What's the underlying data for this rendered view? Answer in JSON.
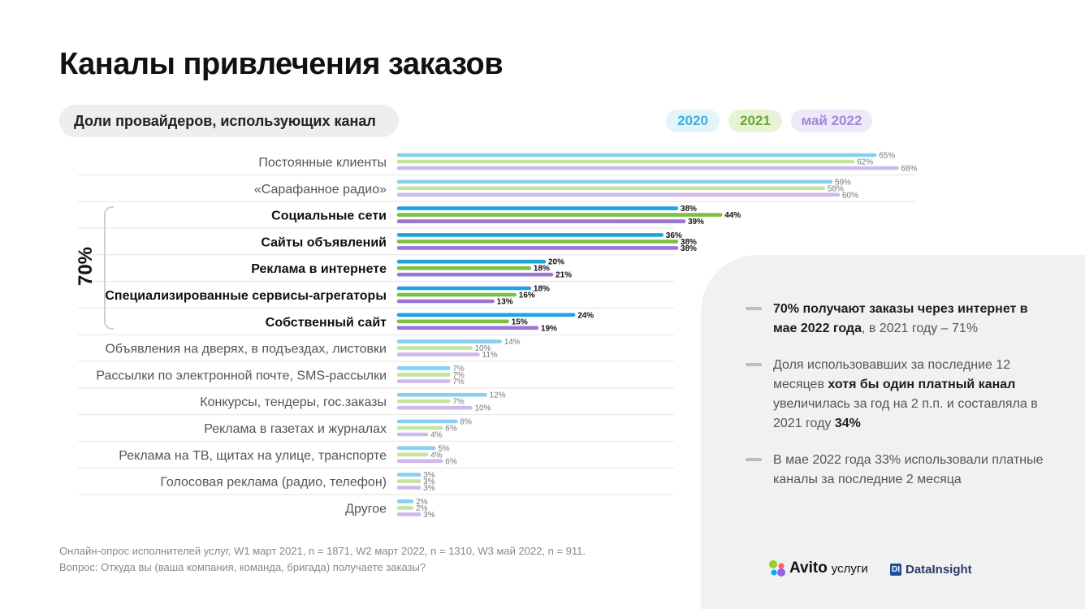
{
  "slide": {
    "title": "Каналы привлечения заказов",
    "subtitle": "Доли провайдеров, использующих канал",
    "bracket_label": "70%"
  },
  "legend": [
    {
      "label": "2020",
      "color": "#5bc3e6",
      "text_color": "#3bb0da",
      "bg": "#e4f4fb"
    },
    {
      "label": "2021",
      "color": "#a6d96a",
      "text_color": "#6da833",
      "bg": "#e6f3d6"
    },
    {
      "label": "май 2022",
      "color": "#b49ce6",
      "text_color": "#a486d8",
      "bg": "#efe8fa"
    }
  ],
  "chart_data": {
    "type": "bar",
    "orientation": "horizontal",
    "title": "Доли провайдеров, использующих канал",
    "categories": [
      "Постоянные клиенты",
      "«Сарафанное радио»",
      "Социальные сети",
      "Сайты объявлений",
      "Реклама в интернете",
      "Специализированные сервисы-агрегаторы",
      "Собственный сайт",
      "Объявления на дверях, в подъездах, листовки",
      "Рассылки по электронной почте, SMS-рассылки",
      "Конкурсы, тендеры, гос.заказы",
      "Реклама в газетах и журналах",
      "Реклама на ТВ, щитах на улице, транспорте",
      "Голосовая реклама (радио, телефон)",
      "Другое"
    ],
    "highlighted": [
      false,
      false,
      true,
      true,
      true,
      true,
      true,
      false,
      false,
      false,
      false,
      false,
      false,
      false
    ],
    "series": [
      {
        "name": "2020",
        "values": [
          65,
          59,
          38,
          36,
          20,
          18,
          24,
          14,
          7,
          12,
          8,
          5,
          3,
          2
        ]
      },
      {
        "name": "2021",
        "values": [
          62,
          58,
          44,
          38,
          18,
          16,
          15,
          10,
          7,
          7,
          6,
          4,
          3,
          2
        ]
      },
      {
        "name": "май 2022",
        "values": [
          68,
          60,
          39,
          38,
          21,
          13,
          19,
          11,
          7,
          10,
          4,
          6,
          3,
          3
        ]
      }
    ],
    "value_suffix": "%",
    "colors": {
      "normal": [
        "#86d0ee",
        "#c4e69c",
        "#cdb8ef"
      ],
      "highlighted": [
        "#1fa5dd",
        "#7bc043",
        "#9b74d6"
      ]
    }
  },
  "notes": [
    {
      "bold1": "70% получают заказы через интернет в мае 2022 года",
      "text1": ", в 2021 году – 71%",
      "bold2": "",
      "text2": "",
      "bold3": ""
    },
    {
      "bold1": "",
      "text1": "Доля использовавших за последние 12 месяцев ",
      "bold2": "хотя бы один платный канал",
      "text2": " увеличилась за год на 2 п.п. и составляла в 2021 году ",
      "bold3": "34%"
    },
    {
      "bold1": "",
      "text1": "В мае 2022 года 33% использовали платные каналы за последние 2 месяца",
      "bold2": "",
      "text2": "",
      "bold3": ""
    }
  ],
  "footnotes": [
    "Онлайн-опрос исполнителей услуг, W1 март 2021, n = 1871, W2 март 2022, n = 1310, W3 май 2022, n = 911.",
    "Вопрос:  Откуда вы (ваша компания, команда, бригада) получаете заказы?"
  ],
  "logos": {
    "avito": "Avito",
    "avito_suffix": "услуги",
    "datainsight": "DataInsight",
    "datainsight_mark": "DI"
  }
}
